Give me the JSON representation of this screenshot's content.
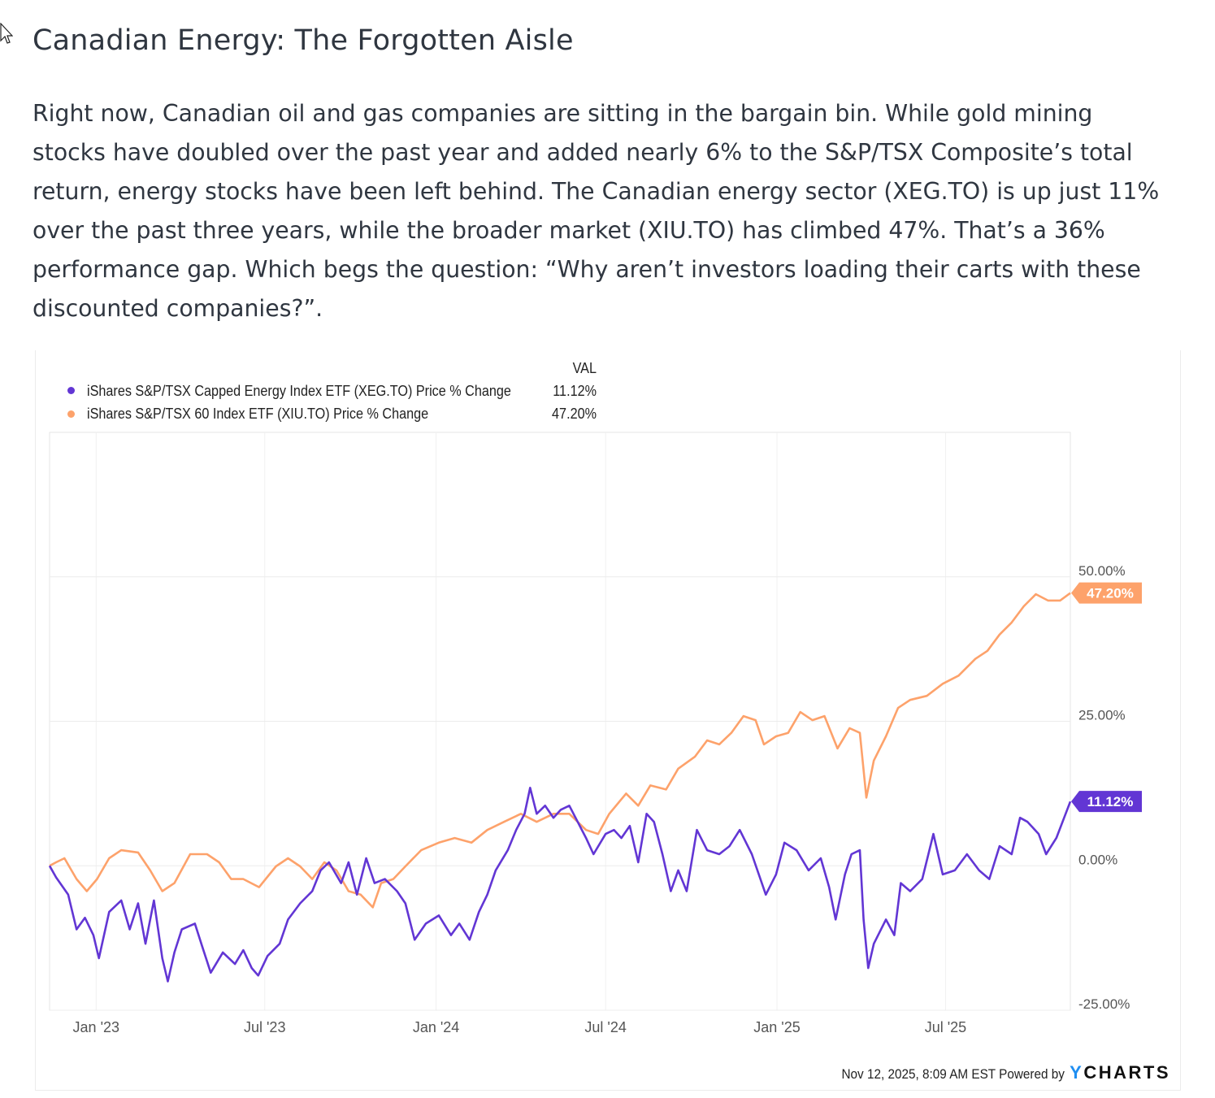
{
  "article": {
    "title": "Canadian Energy: The Forgotten Aisle",
    "paragraph_lines": [
      "Right now, Canadian oil and gas companies are sitting in the bargain bin. While gold mining",
      "stocks have doubled over the past year and added nearly 6% to the S&P/TSX Composite’s total",
      "return, energy stocks have been left behind. The Canadian energy sector (XEG.TO) is up just 11%",
      "over the past three years, while the broader market (XIU.TO) has climbed 47%. That’s a 36%",
      "performance gap. Which begs the question: “Why aren’t investors loading their carts with these",
      "discounted companies?”."
    ]
  },
  "chart_data": {
    "type": "line",
    "legend_header": "VAL",
    "legend_placement": "top-left",
    "grid": true,
    "xlim": [
      "2022-11-12",
      "2025-11-12"
    ],
    "ylim": [
      -25,
      75
    ],
    "x_ticks": [
      {
        "date": "2023-01-01",
        "label": "Jan '23"
      },
      {
        "date": "2023-07-01",
        "label": "Jul '23"
      },
      {
        "date": "2024-01-01",
        "label": "Jan '24"
      },
      {
        "date": "2024-07-01",
        "label": "Jul '24"
      },
      {
        "date": "2025-01-01",
        "label": "Jan '25"
      },
      {
        "date": "2025-07-01",
        "label": "Jul '25"
      }
    ],
    "y_ticks": [
      {
        "value": 50,
        "label": "50.00%"
      },
      {
        "value": 25,
        "label": "25.00%"
      },
      {
        "value": 0,
        "label": "0.00%"
      },
      {
        "value": -25,
        "label": "-25.00%"
      }
    ],
    "series": [
      {
        "name": "iShares S&P/TSX Capped Energy Index ETF (XEG.TO) Price % Change",
        "last_value_label": "11.12%",
        "color": "#6236d4",
        "points": [
          [
            "2022-11-12",
            0
          ],
          [
            "2022-11-19",
            -2
          ],
          [
            "2022-12-02",
            -5
          ],
          [
            "2022-12-11",
            -11
          ],
          [
            "2022-12-20",
            -9
          ],
          [
            "2022-12-29",
            -12
          ],
          [
            "2023-01-04",
            -16
          ],
          [
            "2023-01-15",
            -8
          ],
          [
            "2023-01-28",
            -6
          ],
          [
            "2023-02-06",
            -11
          ],
          [
            "2023-02-15",
            -6.5
          ],
          [
            "2023-02-23",
            -13.5
          ],
          [
            "2023-03-04",
            -6
          ],
          [
            "2023-03-13",
            -16
          ],
          [
            "2023-03-19",
            -20
          ],
          [
            "2023-03-26",
            -15
          ],
          [
            "2023-04-03",
            -11
          ],
          [
            "2023-04-17",
            -10
          ],
          [
            "2023-04-25",
            -14
          ],
          [
            "2023-05-04",
            -18.5
          ],
          [
            "2023-05-17",
            -15
          ],
          [
            "2023-05-30",
            -17
          ],
          [
            "2023-06-08",
            -14.6
          ],
          [
            "2023-06-17",
            -17.7
          ],
          [
            "2023-06-24",
            -19
          ],
          [
            "2023-07-04",
            -15.6
          ],
          [
            "2023-07-17",
            -13.5
          ],
          [
            "2023-07-26",
            -9.3
          ],
          [
            "2023-08-08",
            -6.5
          ],
          [
            "2023-08-21",
            -4.4
          ],
          [
            "2023-08-30",
            -0.8
          ],
          [
            "2023-09-08",
            0.6
          ],
          [
            "2023-09-21",
            -3
          ],
          [
            "2023-09-29",
            0.6
          ],
          [
            "2023-10-08",
            -5
          ],
          [
            "2023-10-18",
            1.3
          ],
          [
            "2023-10-27",
            -3
          ],
          [
            "2023-11-07",
            -2.3
          ],
          [
            "2023-11-20",
            -4.4
          ],
          [
            "2023-11-29",
            -6.5
          ],
          [
            "2023-12-09",
            -12.8
          ],
          [
            "2023-12-21",
            -10
          ],
          [
            "2024-01-04",
            -8.6
          ],
          [
            "2024-01-17",
            -12
          ],
          [
            "2024-01-26",
            -10
          ],
          [
            "2024-02-06",
            -12.8
          ],
          [
            "2024-02-16",
            -8
          ],
          [
            "2024-02-25",
            -5
          ],
          [
            "2024-03-05",
            -0.8
          ],
          [
            "2024-03-18",
            2.7
          ],
          [
            "2024-03-27",
            6.2
          ],
          [
            "2024-04-05",
            9
          ],
          [
            "2024-04-11",
            13.5
          ],
          [
            "2024-04-18",
            9
          ],
          [
            "2024-04-27",
            10.4
          ],
          [
            "2024-05-06",
            8.3
          ],
          [
            "2024-05-14",
            9.7
          ],
          [
            "2024-05-23",
            10.4
          ],
          [
            "2024-06-01",
            7.6
          ],
          [
            "2024-06-10",
            4.8
          ],
          [
            "2024-06-18",
            2
          ],
          [
            "2024-07-01",
            5.5
          ],
          [
            "2024-07-10",
            6.2
          ],
          [
            "2024-07-18",
            4.8
          ],
          [
            "2024-07-27",
            6.9
          ],
          [
            "2024-08-05",
            0.6
          ],
          [
            "2024-08-14",
            9
          ],
          [
            "2024-08-22",
            7.6
          ],
          [
            "2024-08-31",
            2
          ],
          [
            "2024-09-09",
            -4.4
          ],
          [
            "2024-09-17",
            -0.8
          ],
          [
            "2024-09-26",
            -4.4
          ],
          [
            "2024-10-07",
            6.2
          ],
          [
            "2024-10-18",
            2.7
          ],
          [
            "2024-10-31",
            2
          ],
          [
            "2024-11-11",
            3.4
          ],
          [
            "2024-11-22",
            6.2
          ],
          [
            "2024-12-05",
            2
          ],
          [
            "2024-12-20",
            -5
          ],
          [
            "2024-12-31",
            -1.5
          ],
          [
            "2025-01-09",
            4
          ],
          [
            "2025-01-22",
            2.7
          ],
          [
            "2025-02-04",
            -0.8
          ],
          [
            "2025-02-17",
            1.3
          ],
          [
            "2025-02-26",
            -3.7
          ],
          [
            "2025-03-05",
            -9.3
          ],
          [
            "2025-03-15",
            -1.5
          ],
          [
            "2025-03-22",
            2
          ],
          [
            "2025-03-31",
            2.7
          ],
          [
            "2025-04-04",
            -9.3
          ],
          [
            "2025-04-09",
            -17.7
          ],
          [
            "2025-04-15",
            -13.5
          ],
          [
            "2025-04-28",
            -9.3
          ],
          [
            "2025-05-07",
            -12
          ],
          [
            "2025-05-14",
            -3
          ],
          [
            "2025-05-24",
            -4.4
          ],
          [
            "2025-06-06",
            -2.3
          ],
          [
            "2025-06-18",
            5.5
          ],
          [
            "2025-06-28",
            -1.5
          ],
          [
            "2025-07-11",
            -0.8
          ],
          [
            "2025-07-24",
            2
          ],
          [
            "2025-08-06",
            -0.8
          ],
          [
            "2025-08-17",
            -2.3
          ],
          [
            "2025-08-28",
            3.4
          ],
          [
            "2025-09-10",
            2
          ],
          [
            "2025-09-19",
            8.3
          ],
          [
            "2025-09-27",
            7.6
          ],
          [
            "2025-10-09",
            5.5
          ],
          [
            "2025-10-17",
            2
          ],
          [
            "2025-10-28",
            4.8
          ],
          [
            "2025-11-12",
            11.12
          ]
        ]
      },
      {
        "name": "iShares S&P/TSX 60 Index ETF (XIU.TO) Price % Change",
        "last_value_label": "47.20%",
        "color": "#fda26b",
        "points": [
          [
            "2022-11-12",
            0
          ],
          [
            "2022-11-19",
            0.6
          ],
          [
            "2022-11-28",
            1.3
          ],
          [
            "2022-12-11",
            -2.3
          ],
          [
            "2022-12-22",
            -4.4
          ],
          [
            "2023-01-02",
            -2.3
          ],
          [
            "2023-01-15",
            1.3
          ],
          [
            "2023-01-28",
            2.7
          ],
          [
            "2023-02-15",
            2.3
          ],
          [
            "2023-02-28",
            -0.8
          ],
          [
            "2023-03-13",
            -4.4
          ],
          [
            "2023-03-26",
            -3
          ],
          [
            "2023-04-12",
            2
          ],
          [
            "2023-04-30",
            2
          ],
          [
            "2023-05-13",
            0.6
          ],
          [
            "2023-05-26",
            -2.3
          ],
          [
            "2023-06-08",
            -2.3
          ],
          [
            "2023-06-25",
            -3.7
          ],
          [
            "2023-07-13",
            -0.1
          ],
          [
            "2023-07-26",
            1.3
          ],
          [
            "2023-08-08",
            -0.1
          ],
          [
            "2023-08-21",
            -2.3
          ],
          [
            "2023-09-03",
            0.6
          ],
          [
            "2023-09-16",
            -0.8
          ],
          [
            "2023-09-29",
            -4.4
          ],
          [
            "2023-10-12",
            -5
          ],
          [
            "2023-10-25",
            -7.2
          ],
          [
            "2023-11-03",
            -3
          ],
          [
            "2023-11-16",
            -2.3
          ],
          [
            "2023-11-29",
            -0.1
          ],
          [
            "2023-12-16",
            2.7
          ],
          [
            "2024-01-04",
            4
          ],
          [
            "2024-01-21",
            4.8
          ],
          [
            "2024-02-08",
            4
          ],
          [
            "2024-02-25",
            6.2
          ],
          [
            "2024-03-14",
            7.6
          ],
          [
            "2024-04-01",
            9
          ],
          [
            "2024-04-18",
            7.6
          ],
          [
            "2024-05-06",
            9
          ],
          [
            "2024-05-23",
            9
          ],
          [
            "2024-06-10",
            6.2
          ],
          [
            "2024-06-23",
            5.5
          ],
          [
            "2024-07-05",
            9
          ],
          [
            "2024-07-23",
            12.5
          ],
          [
            "2024-08-05",
            10.4
          ],
          [
            "2024-08-18",
            13.9
          ],
          [
            "2024-09-04",
            13.2
          ],
          [
            "2024-09-17",
            16.8
          ],
          [
            "2024-10-05",
            18.9
          ],
          [
            "2024-10-18",
            21.7
          ],
          [
            "2024-10-31",
            21
          ],
          [
            "2024-11-13",
            23
          ],
          [
            "2024-11-26",
            25.9
          ],
          [
            "2024-12-09",
            25.2
          ],
          [
            "2024-12-18",
            21
          ],
          [
            "2024-12-31",
            22.4
          ],
          [
            "2025-01-13",
            23
          ],
          [
            "2025-01-26",
            26.6
          ],
          [
            "2025-02-08",
            25.2
          ],
          [
            "2025-02-21",
            25.9
          ],
          [
            "2025-03-07",
            20.3
          ],
          [
            "2025-03-20",
            23.8
          ],
          [
            "2025-03-31",
            23
          ],
          [
            "2025-04-07",
            11.8
          ],
          [
            "2025-04-15",
            18.2
          ],
          [
            "2025-04-28",
            22.4
          ],
          [
            "2025-05-11",
            27.3
          ],
          [
            "2025-05-24",
            28.7
          ],
          [
            "2025-06-11",
            29.4
          ],
          [
            "2025-06-28",
            31.5
          ],
          [
            "2025-07-15",
            32.9
          ],
          [
            "2025-08-02",
            35.8
          ],
          [
            "2025-08-15",
            37.2
          ],
          [
            "2025-08-28",
            40
          ],
          [
            "2025-09-10",
            42.1
          ],
          [
            "2025-09-23",
            44.9
          ],
          [
            "2025-10-06",
            47
          ],
          [
            "2025-10-19",
            45.9
          ],
          [
            "2025-11-01",
            45.9
          ],
          [
            "2025-11-12",
            47.2
          ]
        ]
      }
    ]
  },
  "footer": {
    "timestamp": "Nov 12, 2025, 8:09 AM EST Powered by",
    "logo_text": "YCHARTS",
    "logo_y": "Y",
    "logo_rest": "CHARTS"
  }
}
